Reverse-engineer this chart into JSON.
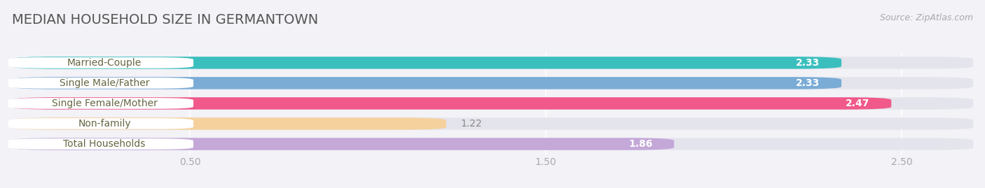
{
  "title": "MEDIAN HOUSEHOLD SIZE IN GERMANTOWN",
  "source": "Source: ZipAtlas.com",
  "categories": [
    "Married-Couple",
    "Single Male/Father",
    "Single Female/Mother",
    "Non-family",
    "Total Households"
  ],
  "values": [
    2.33,
    2.33,
    2.47,
    1.22,
    1.86
  ],
  "bar_colors": [
    "#3bbfbe",
    "#7aacd6",
    "#f0598a",
    "#f5d19e",
    "#c4a8d8"
  ],
  "value_inside": [
    true,
    true,
    true,
    false,
    true
  ],
  "xlim_max": 2.7,
  "xticks": [
    0.5,
    1.5,
    2.5
  ],
  "background_color": "#f2f2f7",
  "bar_bg_color": "#e4e4ec",
  "label_bg_color": "#ffffff",
  "title_fontsize": 14,
  "source_fontsize": 9,
  "label_fontsize": 10,
  "value_fontsize": 10,
  "tick_fontsize": 10,
  "title_color": "#555555",
  "tick_color": "#aaaaaa",
  "label_text_color": "#666644",
  "nonfamily_value_color": "#888888"
}
